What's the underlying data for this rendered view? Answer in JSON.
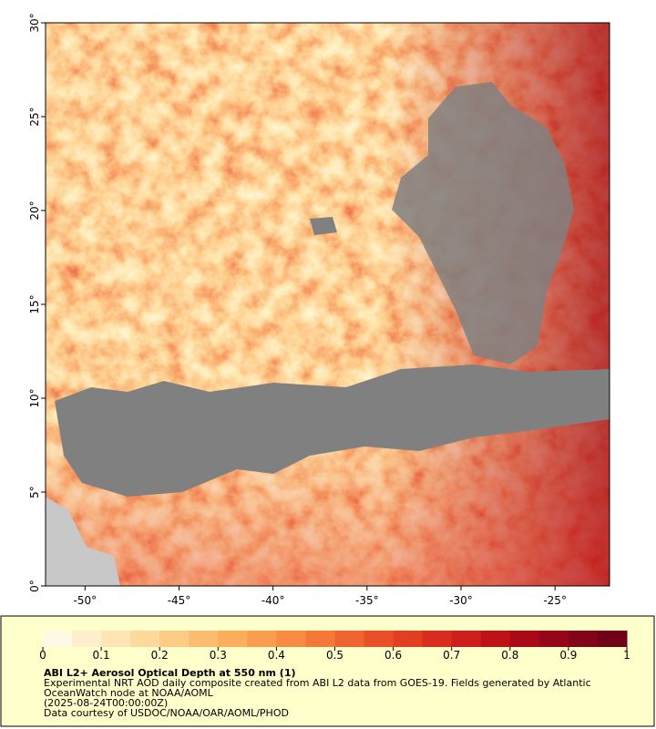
{
  "map": {
    "xlim": [
      -52.1,
      -22.1
    ],
    "ylim": [
      0,
      30
    ],
    "xticks": [
      {
        "value": -50,
        "label": "-50°"
      },
      {
        "value": -45,
        "label": "-45°"
      },
      {
        "value": -40,
        "label": "-40°"
      },
      {
        "value": -35,
        "label": "-35°"
      },
      {
        "value": -30,
        "label": "-30°"
      },
      {
        "value": -25,
        "label": "-25°"
      }
    ],
    "yticks": [
      {
        "value": 0,
        "label": "0°"
      },
      {
        "value": 5,
        "label": "5°"
      },
      {
        "value": 10,
        "label": "10°"
      },
      {
        "value": 15,
        "label": "15°"
      },
      {
        "value": 20,
        "label": "20°"
      },
      {
        "value": 25,
        "label": "25°"
      },
      {
        "value": 30,
        "label": "30°"
      }
    ]
  },
  "colorbar": {
    "lim": [
      0,
      1
    ],
    "ticks": [
      0,
      0.1,
      0.2,
      0.3,
      0.4,
      0.5,
      0.6,
      0.7,
      0.8,
      0.9,
      1
    ],
    "colors": [
      "#fff8e4",
      "#ffeecc",
      "#ffe4b4",
      "#ffd99c",
      "#fdcc84",
      "#fcbe6e",
      "#fbae5c",
      "#f99e4e",
      "#f78c42",
      "#f47838",
      "#f06430",
      "#ea5028",
      "#e23e22",
      "#d82c1e",
      "#cc1e1a",
      "#bc1218",
      "#aa0a18",
      "#960618",
      "#820418",
      "#700218"
    ]
  },
  "caption": {
    "title": "ABI L2+ Aerosol Optical Depth at 550 nm (1)",
    "lines": [
      "Experimental NRT AOD daily composite created from ABI L2 data from GOES-19. Fields generated by Atlantic",
      "OceanWatch node at NOAA/AOML",
      "(2025-08-24T00:00:00Z)",
      "Data courtesy of USDOC/NOAA/OAR/AOML/PHOD"
    ]
  }
}
